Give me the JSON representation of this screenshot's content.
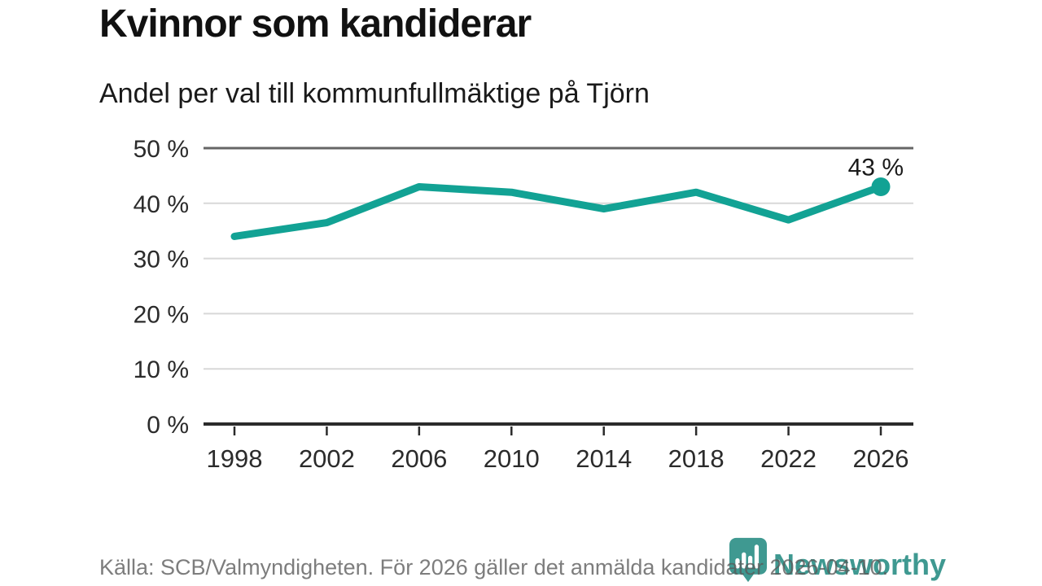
{
  "header": {
    "title": "Kvinnor som kandiderar",
    "subtitle": "Andel per val till kommunfullmäktige på Tjörn"
  },
  "chart_data": {
    "type": "line",
    "title": "Kvinnor som kandiderar",
    "subtitle": "Andel per val till kommunfullmäktige på Tjörn",
    "x": [
      "1998",
      "2002",
      "2006",
      "2010",
      "2014",
      "2018",
      "2022",
      "2026"
    ],
    "values": [
      34,
      36.5,
      43,
      42,
      39,
      42,
      37,
      43
    ],
    "end_label": "43 %",
    "ylim": [
      0,
      50
    ],
    "ytick_step": 10,
    "yticks": [
      "0 %",
      "10 %",
      "20 %",
      "30 %",
      "40 %",
      "50 %"
    ],
    "grid": true,
    "legend": "none",
    "colors": {
      "line": "#12a294",
      "grid_light": "#d8d8d8",
      "grid_top": "#666666",
      "axis": "#2b2b2b",
      "tick_label": "#2b2b2b",
      "end_label": "#1a1a1a"
    }
  },
  "footer": {
    "source": "Källa: SCB/Valmyndigheten. För 2026 gäller det anmälda kandidater 2026-04-10.",
    "brand": "Newsworthy",
    "brand_color": "#3f9991"
  },
  "icons": {
    "logo": "newsworthy-pin-barchart-icon"
  }
}
